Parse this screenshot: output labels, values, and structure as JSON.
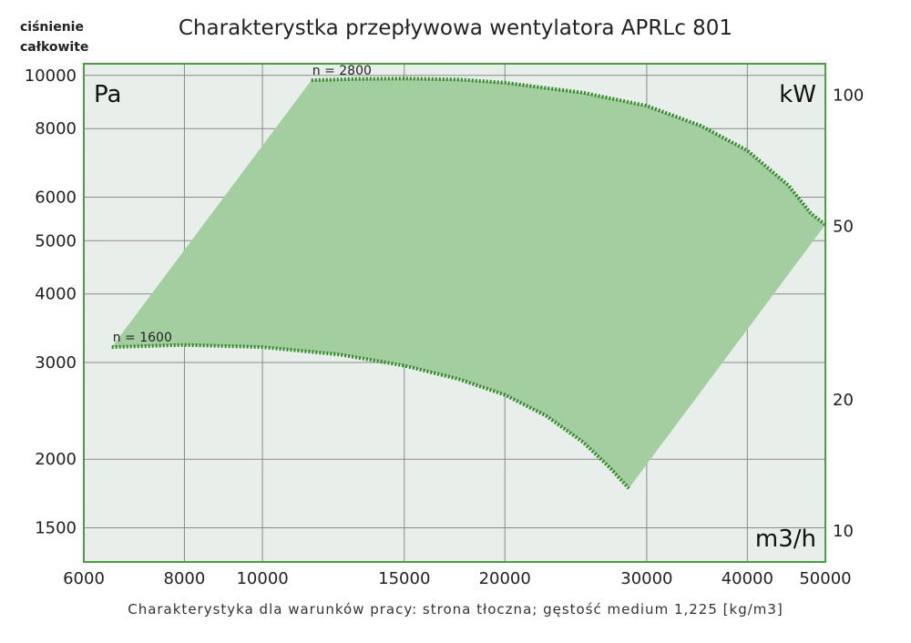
{
  "title": "Charakterystka przepływowa wentylatora APRLc 801",
  "y_title": [
    "ciśnienie",
    "całkowite"
  ],
  "footer": "Charakterystyka dla warunków pracy: strona tłoczna; gęstość medium 1,225 [kg/m3]",
  "colors": {
    "plot_bg": "#e8eeea",
    "frame": "#4aa03c",
    "grid": "#8a8a8a",
    "area": "#a3cfa0",
    "curve": "#2f8a25"
  },
  "chart_data": {
    "type": "area",
    "title": "Charakterystka przepływowa wentylatora APRLc 801",
    "x_scale": "log",
    "y_scale": "log",
    "xlim": [
      6000,
      50000
    ],
    "ylim": [
      1300,
      10500
    ],
    "y2lim": [
      8.5,
      118
    ],
    "x_unit_label": "m3/h",
    "y_unit_label": "Pa",
    "y2_unit_label": "kW",
    "x_ticks": [
      {
        "value": 6000,
        "label": "6000"
      },
      {
        "value": 8000,
        "label": "8000"
      },
      {
        "value": 10000,
        "label": "10000"
      },
      {
        "value": 15000,
        "label": "15000"
      },
      {
        "value": 20000,
        "label": "20000"
      },
      {
        "value": 30000,
        "label": "30000"
      },
      {
        "value": 40000,
        "label": "40000"
      },
      {
        "value": 50000,
        "label": "50000"
      }
    ],
    "y_ticks": [
      {
        "value": 1500,
        "label": "1500"
      },
      {
        "value": 2000,
        "label": "2000"
      },
      {
        "value": 3000,
        "label": "3000"
      },
      {
        "value": 4000,
        "label": "4000"
      },
      {
        "value": 5000,
        "label": "5000"
      },
      {
        "value": 6000,
        "label": "6000"
      },
      {
        "value": 8000,
        "label": "8000"
      },
      {
        "value": 10000,
        "label": "10000"
      }
    ],
    "y2_ticks": [
      {
        "value": 10,
        "label": "10"
      },
      {
        "value": 20,
        "label": "20"
      },
      {
        "value": 50,
        "label": "50"
      },
      {
        "value": 100,
        "label": "100"
      }
    ],
    "grid": true,
    "curves": [
      {
        "name": "n = 1600",
        "points": [
          [
            6500,
            3200
          ],
          [
            8000,
            3230
          ],
          [
            10000,
            3200
          ],
          [
            12500,
            3100
          ],
          [
            15000,
            2960
          ],
          [
            17500,
            2800
          ],
          [
            20000,
            2620
          ],
          [
            22500,
            2400
          ],
          [
            25000,
            2150
          ],
          [
            27000,
            1930
          ],
          [
            28500,
            1770
          ]
        ]
      },
      {
        "name": "n = 2800",
        "points": [
          [
            11500,
            9800
          ],
          [
            13000,
            9850
          ],
          [
            15000,
            9870
          ],
          [
            17500,
            9830
          ],
          [
            20000,
            9700
          ],
          [
            25000,
            9300
          ],
          [
            30000,
            8800
          ],
          [
            35000,
            8100
          ],
          [
            40000,
            7300
          ],
          [
            45000,
            6300
          ],
          [
            48000,
            5600
          ],
          [
            50000,
            5350
          ]
        ]
      }
    ],
    "envelope_edges": [
      {
        "from": [
          6500,
          3200
        ],
        "to": [
          11500,
          9800
        ]
      },
      {
        "from": [
          28500,
          1770
        ],
        "to": [
          50000,
          5350
        ]
      }
    ]
  }
}
